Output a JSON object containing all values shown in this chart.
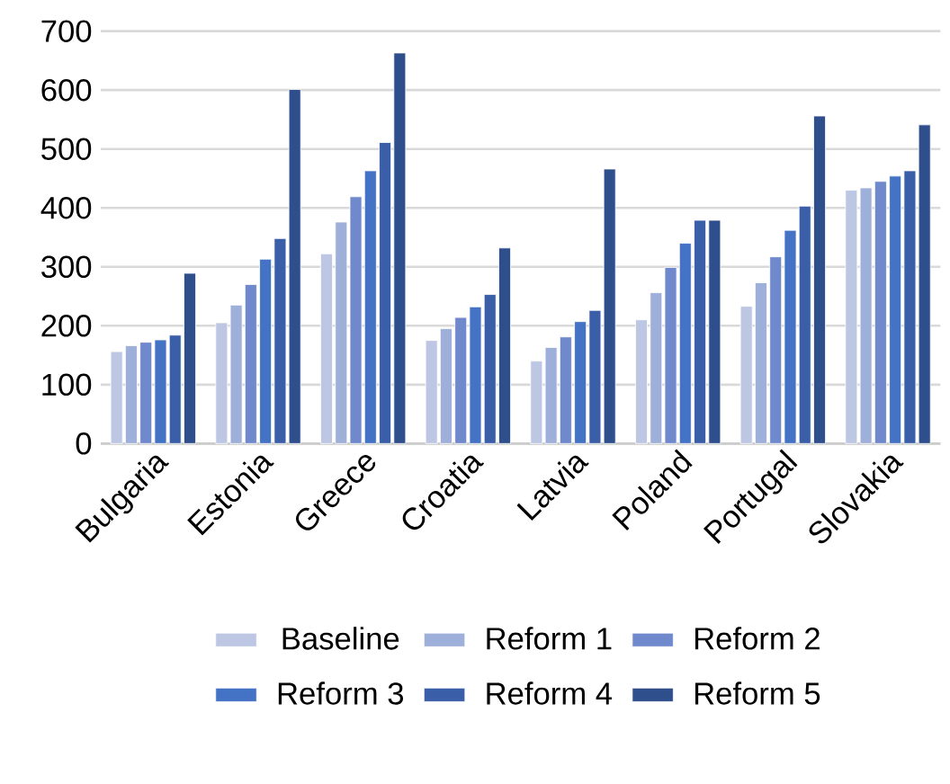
{
  "chart_data": {
    "type": "bar",
    "categories": [
      "Bulgaria",
      "Estonia",
      "Greece",
      "Croatia",
      "Latvia",
      "Poland",
      "Portugal",
      "Slovakia"
    ],
    "series": [
      {
        "name": "Baseline",
        "color": "#bdc7e3",
        "values": [
          156,
          205,
          322,
          175,
          140,
          210,
          233,
          430
        ]
      },
      {
        "name": "Reform 1",
        "color": "#9eafda",
        "values": [
          166,
          235,
          376,
          195,
          163,
          256,
          273,
          434
        ]
      },
      {
        "name": "Reform 2",
        "color": "#7089cc",
        "values": [
          172,
          270,
          419,
          214,
          181,
          299,
          317,
          445
        ]
      },
      {
        "name": "Reform 3",
        "color": "#4472c4",
        "values": [
          176,
          313,
          463,
          232,
          207,
          340,
          362,
          454
        ]
      },
      {
        "name": "Reform 4",
        "color": "#3a5fa8",
        "values": [
          184,
          348,
          511,
          253,
          226,
          379,
          403,
          463
        ]
      },
      {
        "name": "Reform 5",
        "color": "#2f4e8c",
        "values": [
          289,
          601,
          663,
          332,
          466,
          379,
          556,
          541
        ]
      }
    ],
    "ylim": [
      0,
      700
    ],
    "yticks": [
      0,
      100,
      200,
      300,
      400,
      500,
      600,
      700
    ],
    "grid": "y",
    "legend": "bottom"
  }
}
